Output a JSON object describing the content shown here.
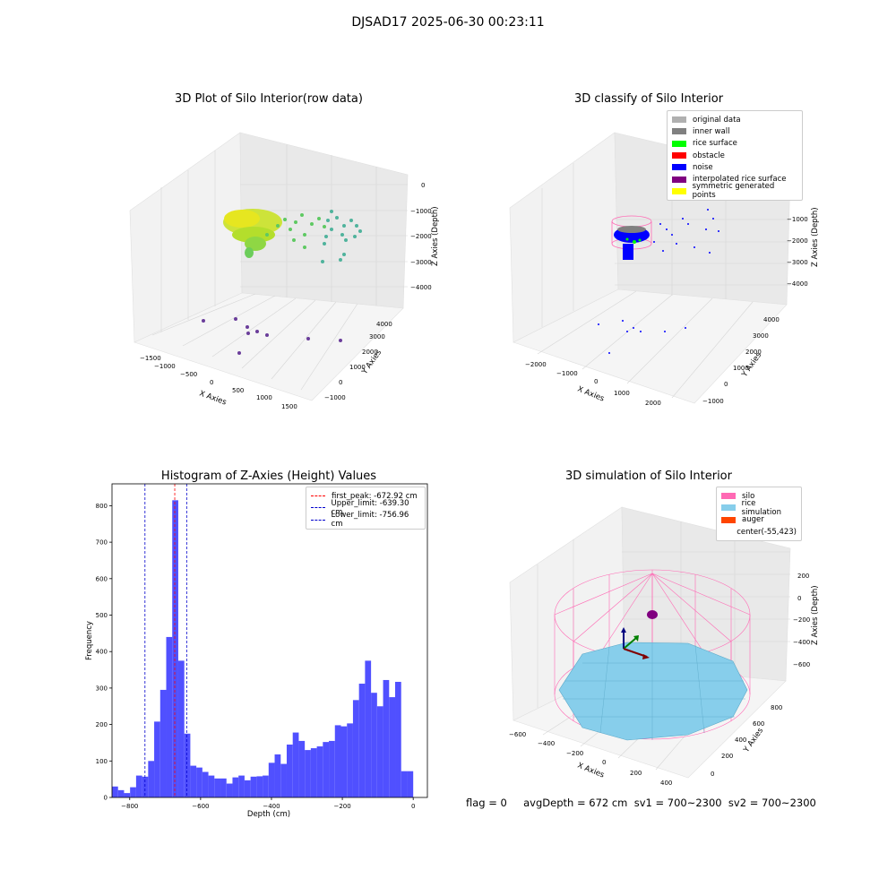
{
  "title": "DJSAD17 2025-06-30 00:23:11",
  "colors": {
    "original": "#b0b0b0",
    "inner_wall": "#808080",
    "rice_surface": "#00ff00",
    "obstacle": "#ff0000",
    "noise": "#0000ff",
    "interpolated": "#800080",
    "symmetric": "#ffff00",
    "silo": "#ff69b4",
    "rice_sim": "#87ceeb",
    "auger": "#ff4500",
    "hist_bar": "#5050ff",
    "peak_line": "#ff0000",
    "limit_line": "#0000cc"
  },
  "panel1": {
    "title": "3D Plot of Silo Interior(row data)",
    "xlabel": "X Axies",
    "ylabel": "Y Axies",
    "zlabel": "Z Axies (Depth)",
    "xticks": [
      "−1500",
      "−1000",
      "−500",
      "0",
      "500",
      "1000",
      "1500"
    ],
    "yticks": [
      "−1000",
      "0",
      "1000",
      "2000",
      "3000",
      "4000"
    ],
    "zticks": [
      "0",
      "−1000",
      "−2000",
      "−3000",
      "−4000"
    ]
  },
  "panel2": {
    "title": "3D classify of Silo Interior",
    "xlabel": "X Axies",
    "ylabel": "Y Axies",
    "zlabel": "Z Axies (Depth)",
    "xticks": [
      "−2000",
      "−1000",
      "0",
      "1000",
      "2000"
    ],
    "yticks": [
      "−1000",
      "0",
      "1000",
      "2000",
      "3000",
      "4000"
    ],
    "zticks": [
      "0",
      "−1000",
      "−2000",
      "−3000",
      "−4000"
    ],
    "legend": [
      "original data",
      "inner wall",
      "rice surface",
      "obstacle",
      "noise",
      "interpolated rice surface",
      "symmetric generated points"
    ]
  },
  "panel4": {
    "title": "3D simulation of Silo Interior",
    "xlabel": "X Axies",
    "ylabel": "Y Axies",
    "zlabel": "Z Axies (Depth)",
    "xticks": [
      "−600",
      "−400",
      "−200",
      "0",
      "200",
      "400"
    ],
    "yticks": [
      "0",
      "200",
      "400",
      "600",
      "800"
    ],
    "zticks": [
      "200",
      "0",
      "−200",
      "−400",
      "−600"
    ],
    "legend": [
      "silo",
      "rice simulation",
      "auger",
      "center(-55,423)"
    ]
  },
  "footer": {
    "text": "flag = 0     avgDepth = 672 cm  sv1 = 700~2300  sv2 = 700~2300"
  },
  "chart_data": [
    {
      "type": "histogram",
      "title": "Histogram of Z-Axies (Height) Values",
      "xlabel": "Depth (cm)",
      "ylabel": "Frequency",
      "xlim": [
        -850,
        40
      ],
      "ylim": [
        0,
        860
      ],
      "xticks": [
        -800,
        -600,
        -400,
        -200,
        0
      ],
      "xtick_labels": [
        "−800",
        "−600",
        "−400",
        "−200",
        "0"
      ],
      "yticks": [
        0,
        100,
        200,
        300,
        400,
        500,
        600,
        700,
        800
      ],
      "bins_start": -850,
      "bin_width": 17,
      "values": [
        30,
        20,
        12,
        28,
        60,
        57,
        100,
        208,
        295,
        440,
        815,
        375,
        175,
        87,
        82,
        70,
        60,
        52,
        52,
        38,
        55,
        60,
        47,
        57,
        58,
        60,
        95,
        118,
        92,
        145,
        178,
        155,
        130,
        135,
        140,
        152,
        155,
        198,
        195,
        203,
        267,
        312,
        375,
        287,
        250,
        322,
        275,
        317,
        72,
        72
      ],
      "lines": [
        {
          "label": "first_peak: -672.92 cm",
          "x": -672.92,
          "style": "peak"
        },
        {
          "label": "Upper_limit: -639.30 cm",
          "x": -639.3,
          "style": "limit"
        },
        {
          "label": "Lower_limit: -756.96 cm",
          "x": -756.96,
          "style": "limit"
        }
      ]
    }
  ]
}
